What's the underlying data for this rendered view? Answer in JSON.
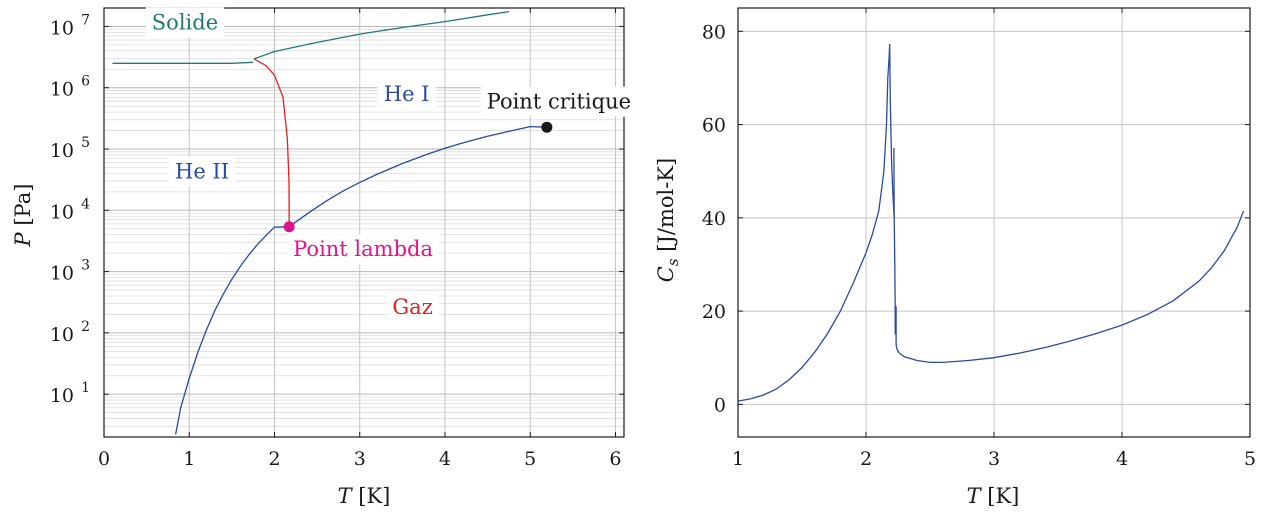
{
  "chart_data": [
    {
      "type": "line",
      "y_scale": "log",
      "xlabel": "T [K]",
      "ylabel": "P [Pa]",
      "xlim": [
        0,
        6.1
      ],
      "ylim": [
        2,
        20000000
      ],
      "grid": true,
      "x_ticks": [
        "0",
        "1",
        "2",
        "3",
        "4",
        "5",
        "6"
      ],
      "y_ticks": [
        {
          "base": "10",
          "exp": "1"
        },
        {
          "base": "10",
          "exp": "2"
        },
        {
          "base": "10",
          "exp": "3"
        },
        {
          "base": "10",
          "exp": "4"
        },
        {
          "base": "10",
          "exp": "5"
        },
        {
          "base": "10",
          "exp": "6"
        },
        {
          "base": "10",
          "exp": "7"
        }
      ],
      "series": [
        {
          "color": "#1f7a75",
          "x": [
            0.1,
            0.5,
            1.0,
            1.5,
            1.75
          ],
          "y": [
            2500000,
            2500000,
            2500000,
            2500000,
            2600000
          ]
        },
        {
          "color": "#1f7a75",
          "x": [
            1.76,
            2.0,
            2.5,
            3.0,
            3.5,
            4.0,
            4.5,
            4.75
          ],
          "y": [
            2950000,
            3900000,
            5500000,
            7500000,
            9600000,
            12000000,
            15500000,
            17500000
          ]
        },
        {
          "color": "#e02020",
          "x": [
            1.76,
            1.9,
            2.0,
            2.1,
            2.15,
            2.17,
            2.172
          ],
          "y": [
            2950000,
            2300000,
            1600000,
            700000,
            150000,
            30000,
            5400
          ]
        },
        {
          "color": "#2b4aa0",
          "x": [
            0.84,
            0.9,
            1.0,
            1.1,
            1.2,
            1.3,
            1.4,
            1.5,
            1.6,
            1.7,
            1.8,
            1.9,
            2.0,
            2.172,
            2.4,
            2.6,
            2.8,
            3.0,
            3.2,
            3.5,
            3.8,
            4.0,
            4.2,
            4.5,
            4.8,
            5.0,
            5.195
          ],
          "y": [
            2.2,
            6,
            18,
            48,
            110,
            230,
            430,
            750,
            1220,
            1880,
            2760,
            3900,
            5300,
            5400,
            9100,
            14000,
            20500,
            28500,
            38500,
            58000,
            83000,
            103000,
            125000,
            162000,
            201000,
            232000,
            227000
          ]
        }
      ],
      "points": [
        {
          "label": "Point critique",
          "x": 5.195,
          "y": 227000,
          "color": "#1a1a1a"
        },
        {
          "label": "Point lambda",
          "x": 2.172,
          "y": 5400,
          "color": "#e0138c"
        }
      ],
      "annotations": [
        {
          "text": "Solide",
          "x": 0.95,
          "y": 11000000,
          "color": "#1f7a75"
        },
        {
          "text": "He I",
          "x": 3.55,
          "y": 740000,
          "color": "#2b4aa0"
        },
        {
          "text": "He II",
          "x": 1.15,
          "y": 41000,
          "color": "#2b4aa0"
        },
        {
          "text": "Gaz",
          "x": 3.62,
          "y": 250,
          "color": "#e02020"
        }
      ]
    },
    {
      "type": "line",
      "xlabel": "T [K]",
      "ylabel": "C_s [J/mol-K]",
      "xlim": [
        1,
        5
      ],
      "ylim": [
        -7,
        85
      ],
      "grid": true,
      "x_ticks": [
        "1",
        "2",
        "3",
        "4",
        "5"
      ],
      "y_ticks": [
        "0",
        "20",
        "40",
        "60",
        "80"
      ],
      "series": [
        {
          "color": "#2b4aa0",
          "x": [
            1.0,
            1.1,
            1.2,
            1.3,
            1.4,
            1.5,
            1.6,
            1.7,
            1.8,
            1.9,
            2.0,
            2.05,
            2.1,
            2.14,
            2.16,
            2.17,
            2.18,
            2.185,
            2.19,
            2.2,
            2.21,
            2.22
          ],
          "y": [
            0.7,
            1.2,
            2.0,
            3.3,
            5.3,
            7.9,
            11.2,
            15.2,
            20.0,
            26.0,
            32.5,
            36.5,
            41.5,
            50.0,
            60.0,
            70.0,
            74.0,
            77.3,
            65.0,
            52.0,
            45.0,
            40.0
          ]
        },
        {
          "color": "#2b4aa0",
          "x": [
            2.218,
            2.22,
            2.225,
            2.228,
            2.228
          ],
          "y": [
            55.0,
            40.0,
            30.0,
            20.0,
            15.0
          ]
        },
        {
          "color": "#2b4aa0",
          "x": [
            2.235,
            2.235,
            2.24,
            2.26,
            2.3,
            2.4,
            2.5,
            2.6,
            2.8,
            3.0,
            3.2,
            3.4,
            3.6,
            3.8,
            4.0,
            4.2,
            4.4,
            4.6,
            4.7,
            4.8,
            4.9,
            4.95
          ],
          "y": [
            21.0,
            13.0,
            12.0,
            11.0,
            10.2,
            9.4,
            9.0,
            9.0,
            9.4,
            10.0,
            11.0,
            12.2,
            13.6,
            15.2,
            17.0,
            19.3,
            22.2,
            26.4,
            29.3,
            33.0,
            38.0,
            41.5
          ]
        }
      ]
    }
  ]
}
